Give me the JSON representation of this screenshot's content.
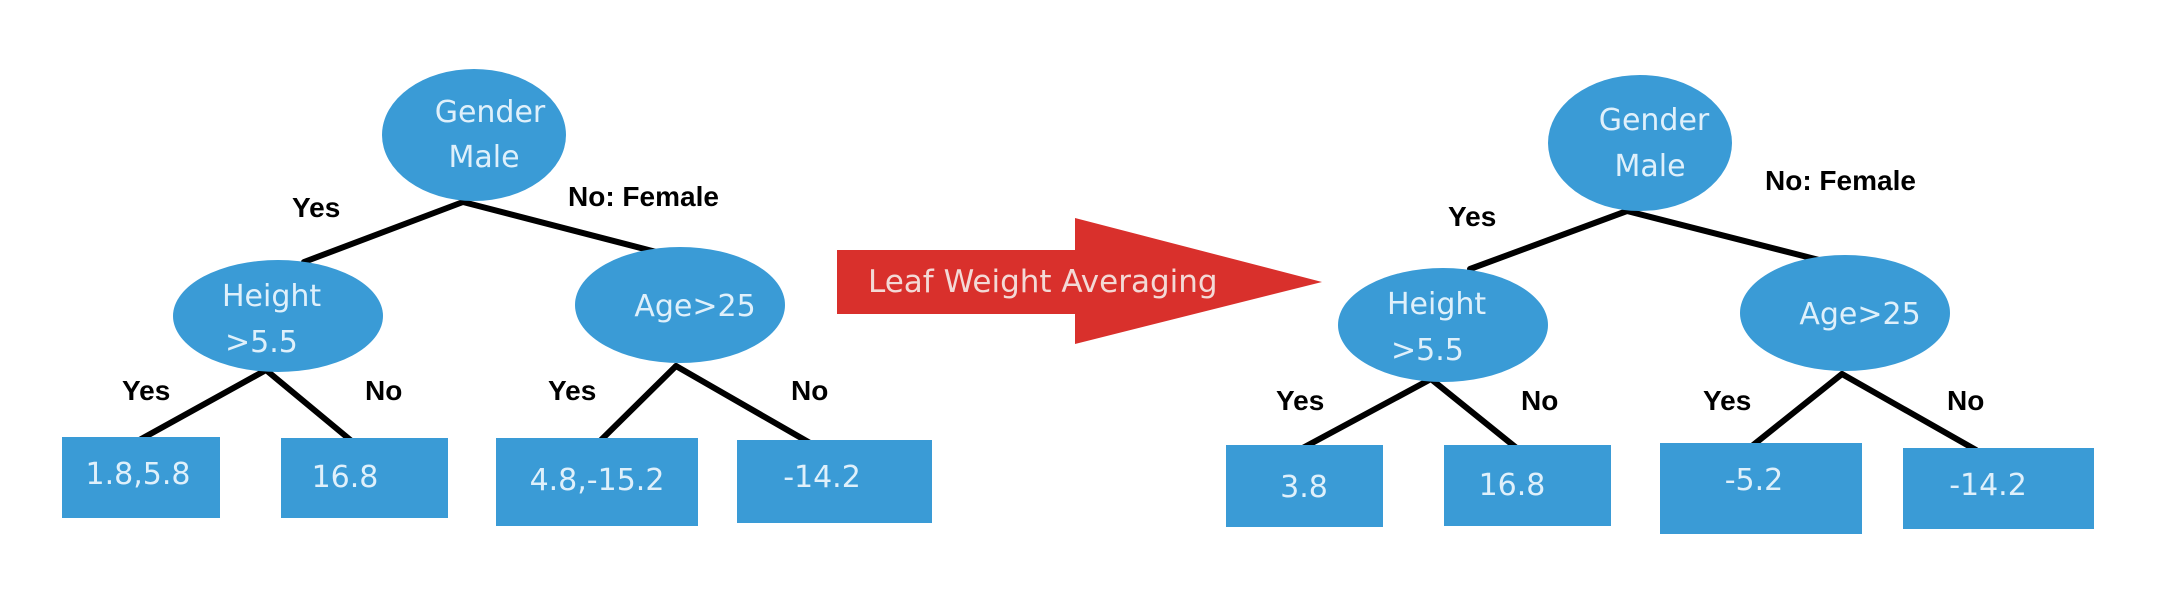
{
  "colors": {
    "node_fill": "#3a9bd6",
    "node_text": "#dff0fb",
    "arrow_fill": "#d9302c",
    "arrow_text": "#f3d9d6",
    "edge": "#000000"
  },
  "arrow": {
    "label": "Leaf Weight Averaging"
  },
  "trees": [
    {
      "root": {
        "line1": "Gender",
        "line2": "Male"
      },
      "left_edge_label": "Yes",
      "right_edge_label": "No: Female",
      "left_child": {
        "line1": "Height",
        "line2": ">5.5",
        "yes_label": "Yes",
        "no_label": "No"
      },
      "right_child": {
        "line1": "Age>25",
        "yes_label": "Yes",
        "no_label": "No"
      },
      "leaves": [
        "1.8,5.8",
        "16.8",
        "4.8,-15.2",
        "-14.2"
      ]
    },
    {
      "root": {
        "line1": "Gender",
        "line2": "Male"
      },
      "left_edge_label": "Yes",
      "right_edge_label": "No: Female",
      "left_child": {
        "line1": "Height",
        "line2": ">5.5",
        "yes_label": "Yes",
        "no_label": "No"
      },
      "right_child": {
        "line1": "Age>25",
        "yes_label": "Yes",
        "no_label": "No"
      },
      "leaves": [
        "3.8",
        "16.8",
        "-5.2",
        "-14.2"
      ]
    }
  ]
}
